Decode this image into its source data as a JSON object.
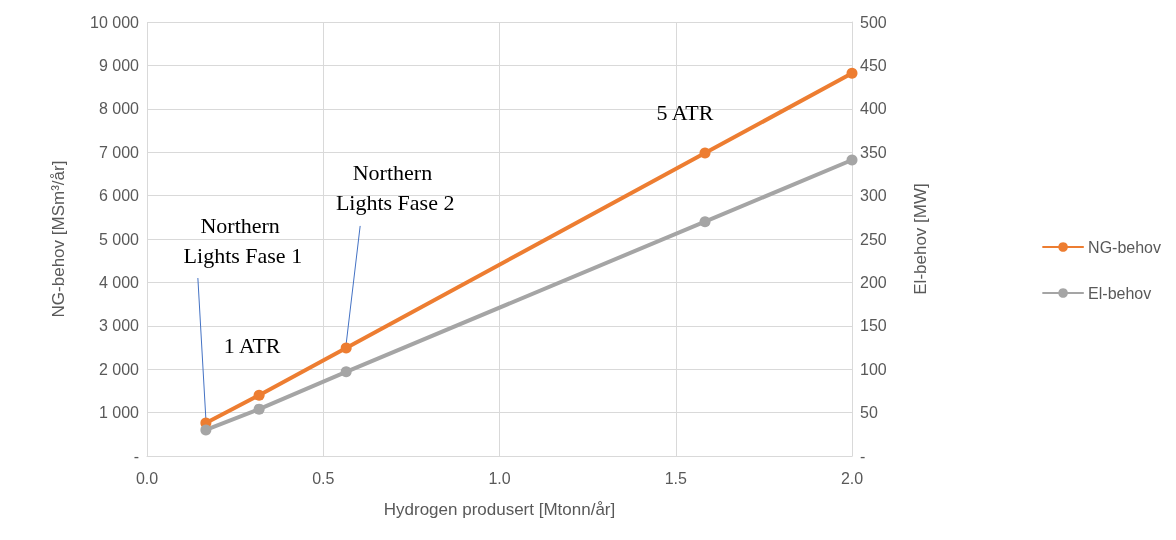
{
  "chart_data": {
    "type": "line",
    "xlabel": "Hydrogen produsert [Mtonn/år]",
    "ylabel": "NG-behov [MSm³/år]",
    "y2label": "El-behov [MW]",
    "x": [
      0.167,
      0.318,
      0.565,
      1.583,
      2.0
    ],
    "series": [
      {
        "name": "NG-behov",
        "color": "#ed7d31",
        "values": [
          760,
          1400,
          2490,
          6980,
          8820
        ]
      },
      {
        "name": "El-behov",
        "color": "#a5a5a5",
        "values": [
          30,
          54,
          97,
          270,
          341
        ],
        "axis": "y2"
      }
    ],
    "xlim": [
      0,
      2.0
    ],
    "xticks": [
      {
        "value": 0,
        "label": "0.0"
      },
      0.5,
      {
        "value": 1,
        "label": "1.0"
      },
      1.5,
      {
        "value": 2,
        "label": "2.0"
      }
    ],
    "ylim": [
      0,
      10000
    ],
    "yticks": [
      {
        "value": 0,
        "label": "-"
      },
      {
        "value": 1000,
        "label": "1 000"
      },
      {
        "value": 2000,
        "label": "2 000"
      },
      {
        "value": 3000,
        "label": "3 000"
      },
      {
        "value": 4000,
        "label": "4 000"
      },
      {
        "value": 5000,
        "label": "5 000"
      },
      {
        "value": 6000,
        "label": "6 000"
      },
      {
        "value": 7000,
        "label": "7 000"
      },
      {
        "value": 8000,
        "label": "8 000"
      },
      {
        "value": 9000,
        "label": "9 000"
      },
      {
        "value": 10000,
        "label": "10 000"
      }
    ],
    "y2lim": [
      0,
      500
    ],
    "y2ticks": [
      {
        "value": 0,
        "label": "-"
      },
      50,
      100,
      150,
      200,
      250,
      300,
      350,
      400,
      450,
      500
    ],
    "annotations": [
      {
        "text": "Northern Lights Fase 1",
        "x": 0.167,
        "y": 760
      },
      {
        "text": "Northern Lights Fase 2",
        "x": 0.565,
        "y": 2490
      },
      {
        "text": "1 ATR",
        "x": 0.318,
        "y": 1400
      },
      {
        "text": "5 ATR",
        "x": 1.583,
        "y": 6980
      }
    ],
    "grid": true,
    "legend": "right",
    "marker": "circle",
    "line_style": "solid"
  }
}
